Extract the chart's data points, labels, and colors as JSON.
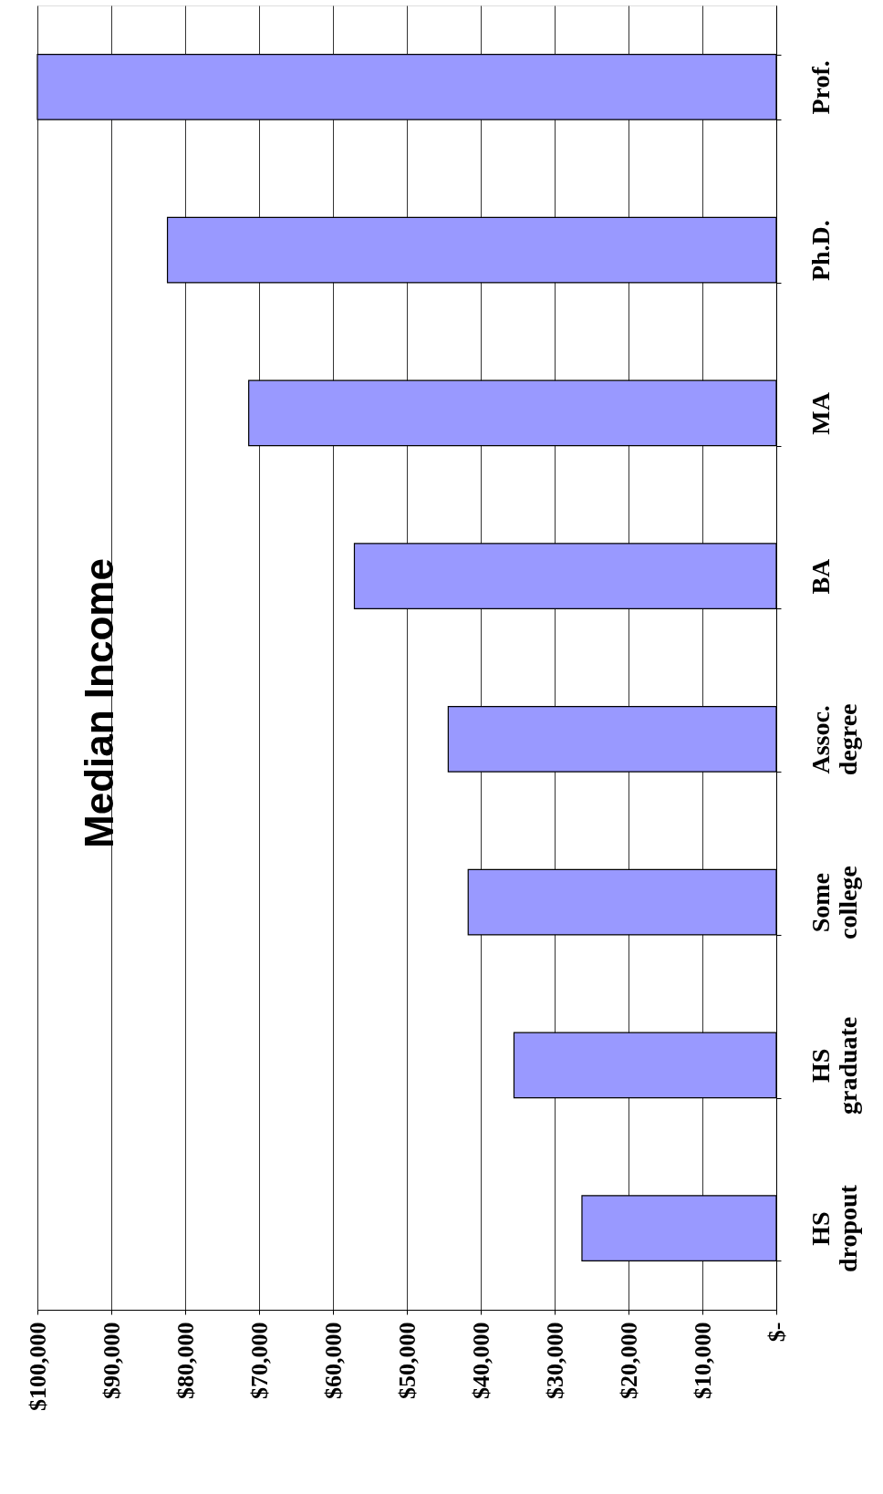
{
  "chart_data": {
    "type": "bar",
    "orientation": "horizontal",
    "title": "Median Income",
    "categories": [
      "Prof.",
      "Ph.D.",
      "MA",
      "BA",
      "Assoc. degree",
      "Some college",
      "HS graduate",
      "HS dropout"
    ],
    "values": [
      100000,
      82400,
      71400,
      57100,
      44400,
      41700,
      35500,
      26300
    ],
    "color": "#9999ff",
    "xlim": [
      100000,
      0
    ],
    "xticks": [
      {
        "value": 100000,
        "label": "$100,000"
      },
      {
        "value": 90000,
        "label": "$90,000"
      },
      {
        "value": 80000,
        "label": "$80,000"
      },
      {
        "value": 70000,
        "label": "$70,000"
      },
      {
        "value": 60000,
        "label": "$60,000"
      },
      {
        "value": 50000,
        "label": "$50,000"
      },
      {
        "value": 40000,
        "label": "$40,000"
      },
      {
        "value": 30000,
        "label": "$30,000"
      },
      {
        "value": 20000,
        "label": "$20,000"
      },
      {
        "value": 10000,
        "label": "$10,000"
      },
      {
        "value": 0,
        "label": "$-"
      }
    ],
    "grid": "x"
  }
}
